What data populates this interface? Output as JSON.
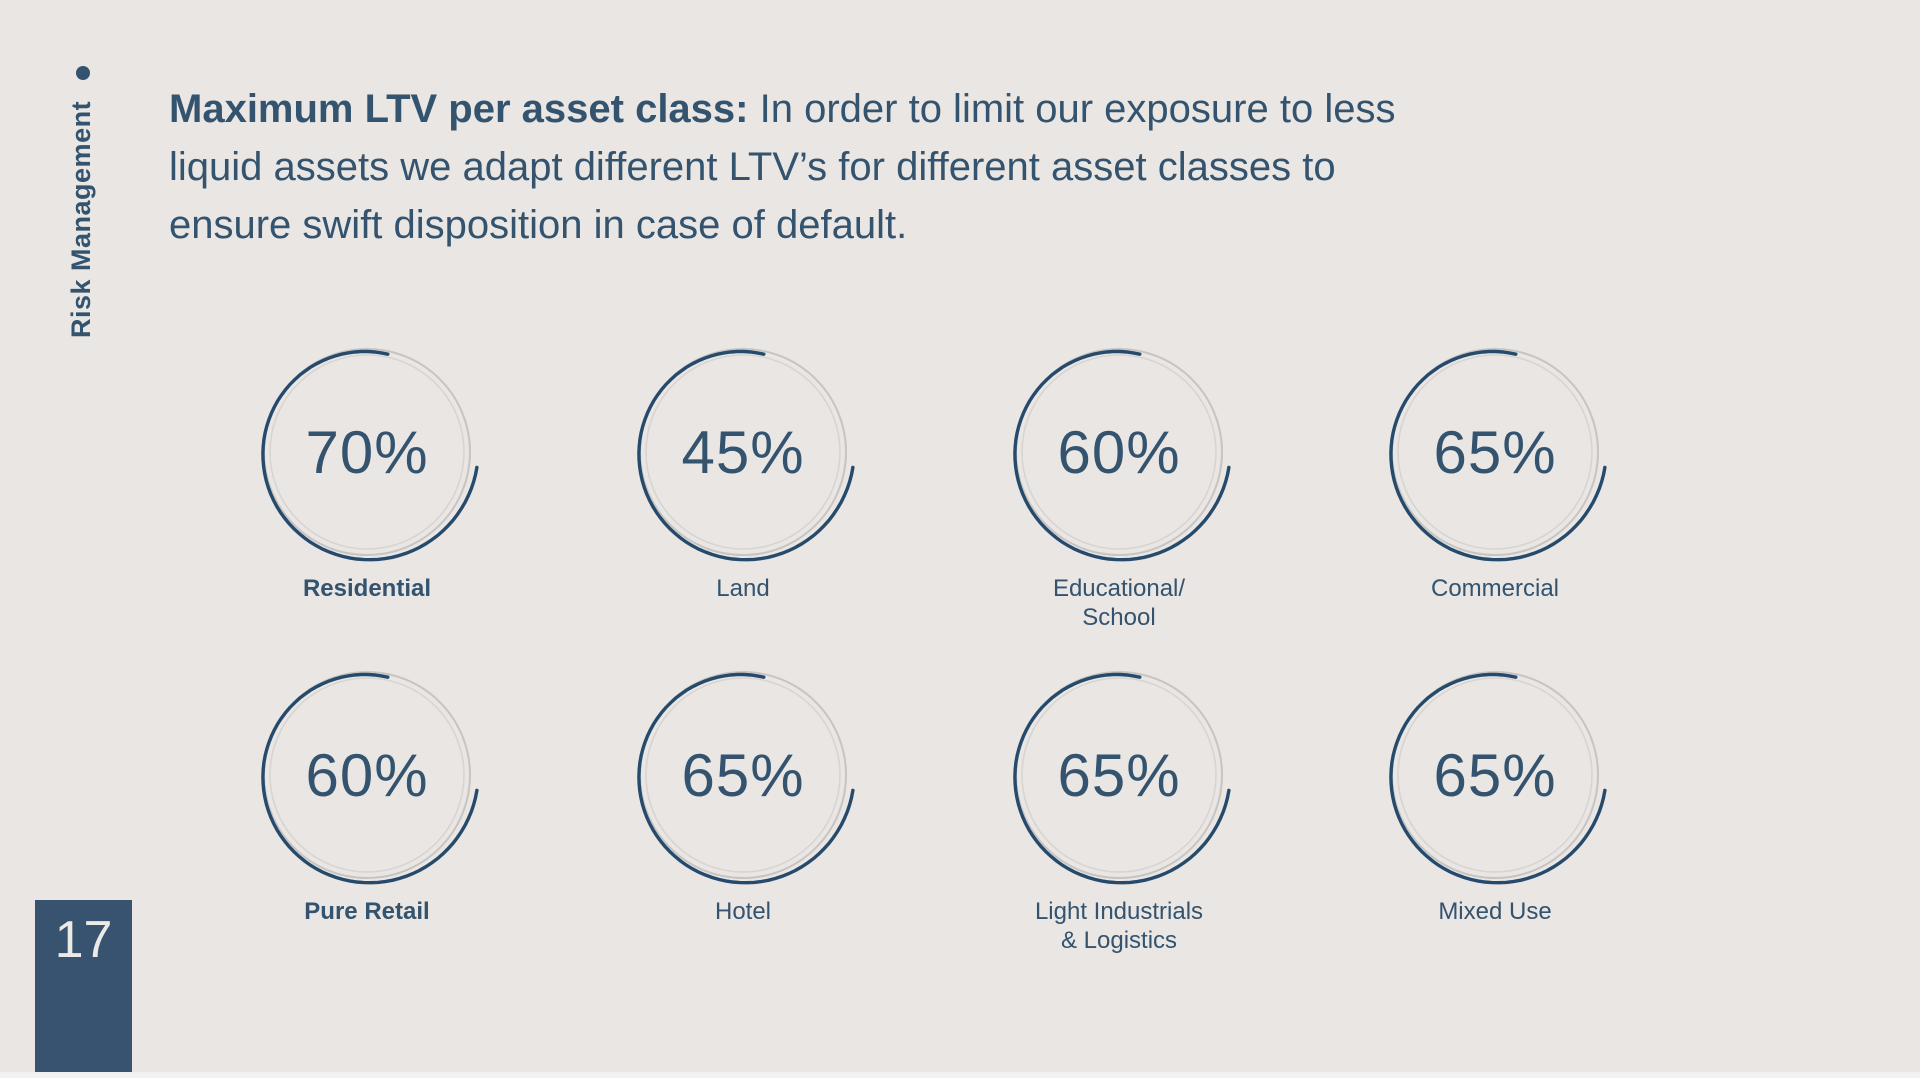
{
  "slide": {
    "section_label": "Risk Management",
    "page_number": "17",
    "colors": {
      "background": "#e9e6e3",
      "accent_text": "#33536e",
      "arc_blue": "#254a6c",
      "ring_gray": "#c7c5c3",
      "page_box": "#37536f",
      "page_number_text": "#eceae7",
      "bottom_strip": "#f4f2f0"
    }
  },
  "intro": {
    "bold_label": "Maximum LTV per asset class:",
    "line1_rest": " In order to limit our exposure to less",
    "line2": "liquid assets we adapt different LTV’s for different asset classes to",
    "line3": "ensure swift disposition in case of default."
  },
  "chart_data": {
    "type": "pie",
    "variant": "donut-gauge grid — sketched open ring with centered value text",
    "title": "Maximum LTV per asset class",
    "unit": "%",
    "layout": {
      "rows": 2,
      "cols": 4,
      "legend": "none",
      "grid": "off"
    },
    "categories": [
      "Residential",
      "Land",
      "Educational/School",
      "Commercial",
      "Pure Retail",
      "Hotel",
      "Light Industrials & Logistics",
      "Mixed Use"
    ],
    "values": [
      70,
      45,
      60,
      65,
      60,
      65,
      65,
      65
    ],
    "items": [
      {
        "value_text": "70%",
        "label_lines": [
          "Residential"
        ],
        "bold": true
      },
      {
        "value_text": "45%",
        "label_lines": [
          "Land"
        ],
        "bold": false
      },
      {
        "value_text": "60%",
        "label_lines": [
          "Educational/",
          "School"
        ],
        "bold": false
      },
      {
        "value_text": "65%",
        "label_lines": [
          "Commercial"
        ],
        "bold": false
      },
      {
        "value_text": "60%",
        "label_lines": [
          "Pure Retail"
        ],
        "bold": true
      },
      {
        "value_text": "65%",
        "label_lines": [
          "Hotel"
        ],
        "bold": false
      },
      {
        "value_text": "65%",
        "label_lines": [
          "Light Industrials",
          "& Logistics"
        ],
        "bold": false
      },
      {
        "value_text": "65%",
        "label_lines": [
          "Mixed Use"
        ],
        "bold": false
      }
    ]
  }
}
